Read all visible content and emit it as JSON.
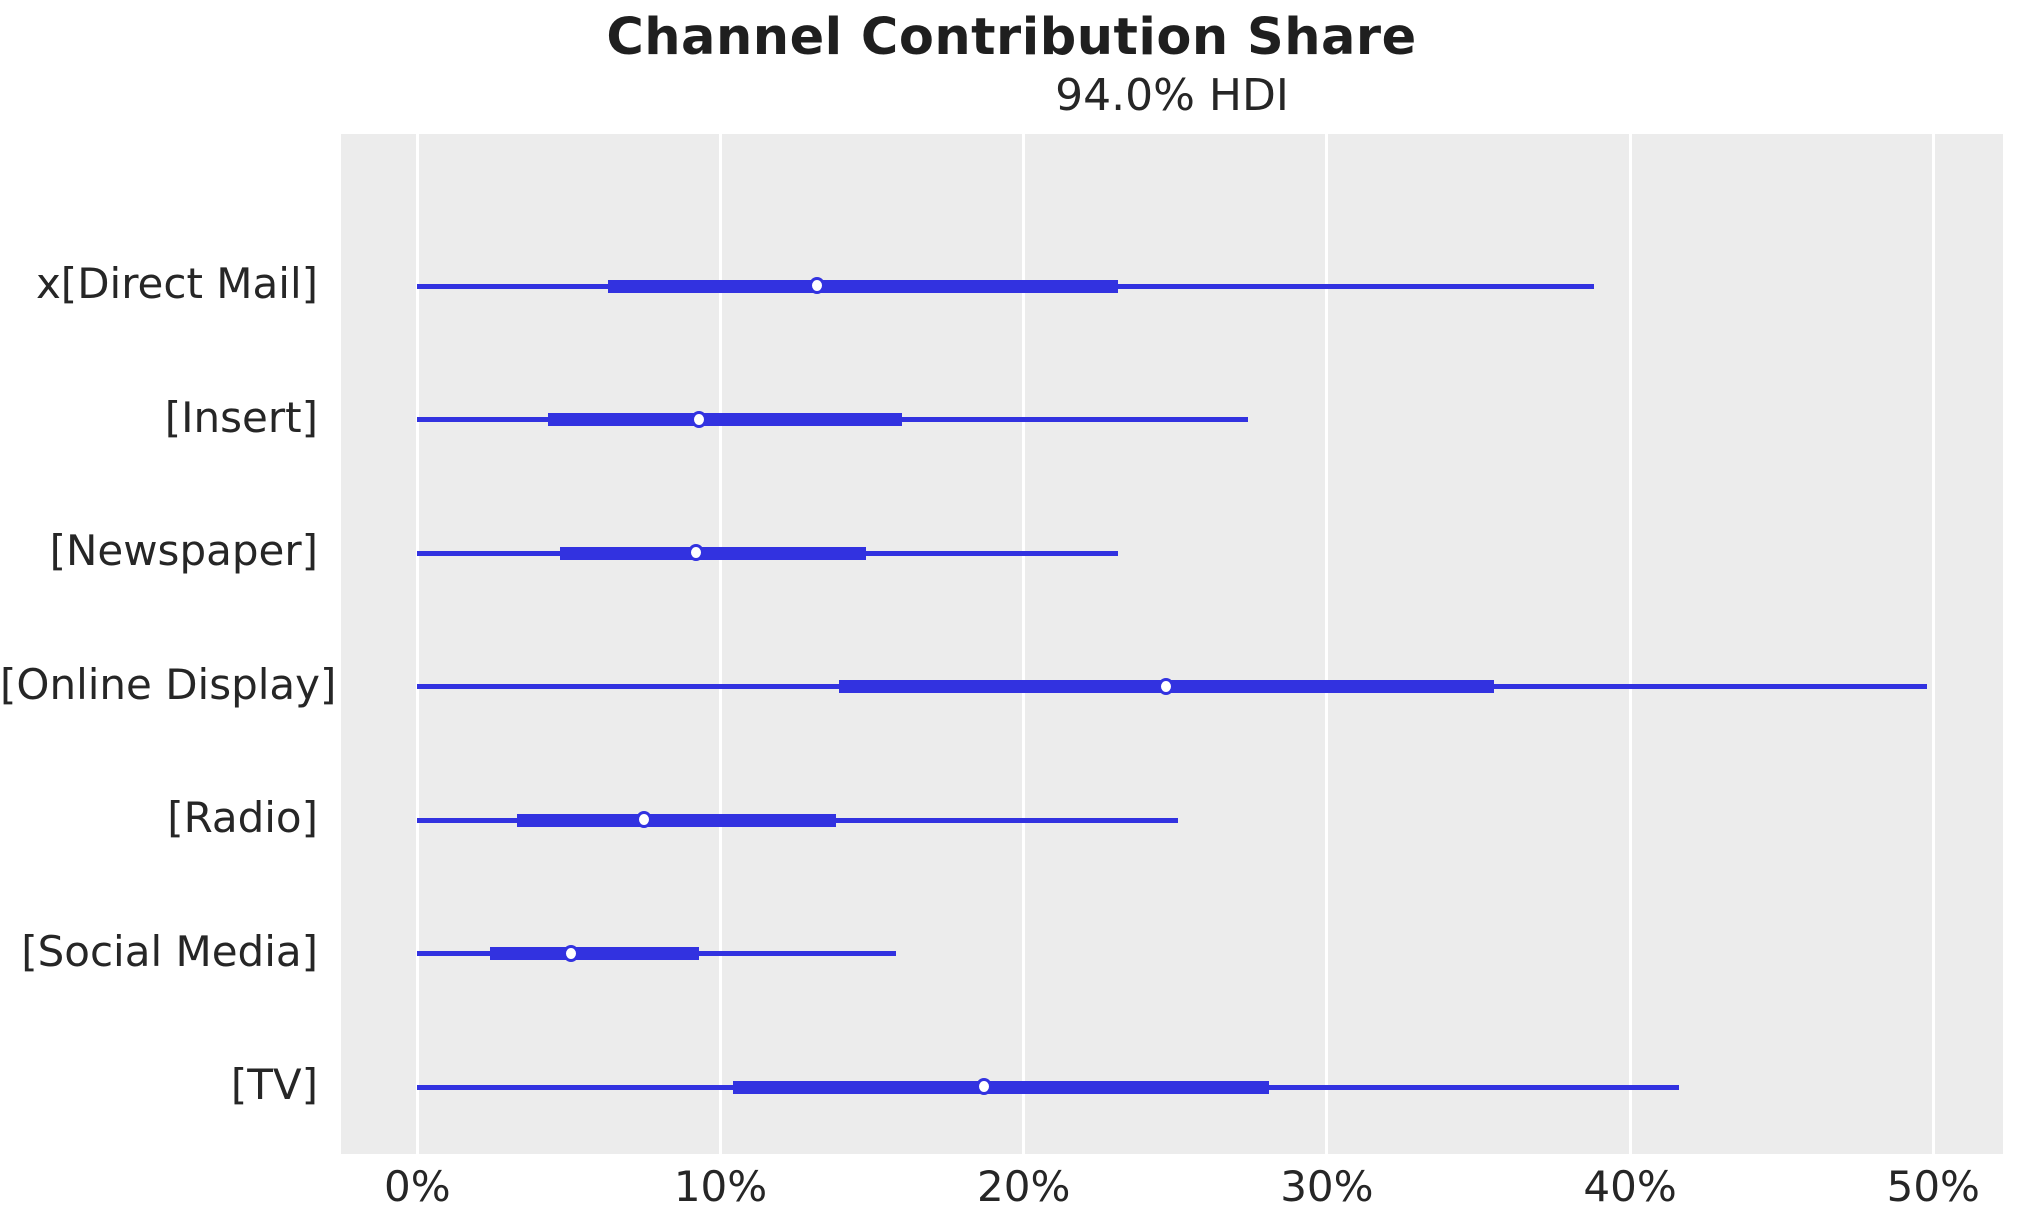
{
  "colors": {
    "line": "#3232e0",
    "marker_fill": "#ffffff",
    "marker_edge": "#3232e0",
    "plot_bg": "#ececec",
    "grid": "#ffffff",
    "text": "#262626",
    "title_text": "#1f1f1f"
  },
  "chart_data": {
    "type": "forest",
    "title": "Channel Contribution Share",
    "subtitle": "94.0% HDI",
    "hdi_prob_label": "94.0% HDI",
    "unit": "%",
    "grid": "vertical-only",
    "legend": "none",
    "xlim": [
      -2.5,
      52.3
    ],
    "x_ticks": [
      "0%",
      "10%",
      "20%",
      "30%",
      "40%",
      "50%"
    ],
    "x_tick_values": [
      0,
      10,
      20,
      30,
      40,
      50
    ],
    "categories": [
      "x[Direct Mail]",
      "[Insert]",
      "[Newspaper]",
      "[Online Display]",
      "[Radio]",
      "[Social Media]",
      "[TV]"
    ],
    "series": [
      {
        "name": "x[Direct Mail]",
        "hdi_low": 0.0,
        "quartile_low": 6.3,
        "median": 13.2,
        "quartile_high": 23.1,
        "hdi_high": 38.8
      },
      {
        "name": "[Insert]",
        "hdi_low": 0.0,
        "quartile_low": 4.3,
        "median": 9.3,
        "quartile_high": 16.0,
        "hdi_high": 27.4
      },
      {
        "name": "[Newspaper]",
        "hdi_low": 0.0,
        "quartile_low": 4.7,
        "median": 9.2,
        "quartile_high": 14.8,
        "hdi_high": 23.1
      },
      {
        "name": "[Online Display]",
        "hdi_low": 0.0,
        "quartile_low": 13.9,
        "median": 24.7,
        "quartile_high": 35.5,
        "hdi_high": 49.8
      },
      {
        "name": "[Radio]",
        "hdi_low": 0.0,
        "quartile_low": 3.3,
        "median": 7.5,
        "quartile_high": 13.8,
        "hdi_high": 25.1
      },
      {
        "name": "[Social Media]",
        "hdi_low": 0.0,
        "quartile_low": 2.4,
        "median": 5.1,
        "quartile_high": 9.3,
        "hdi_high": 15.8
      },
      {
        "name": "[TV]",
        "hdi_low": 0.0,
        "quartile_low": 10.4,
        "median": 18.7,
        "quartile_high": 28.1,
        "hdi_high": 41.6
      }
    ]
  }
}
